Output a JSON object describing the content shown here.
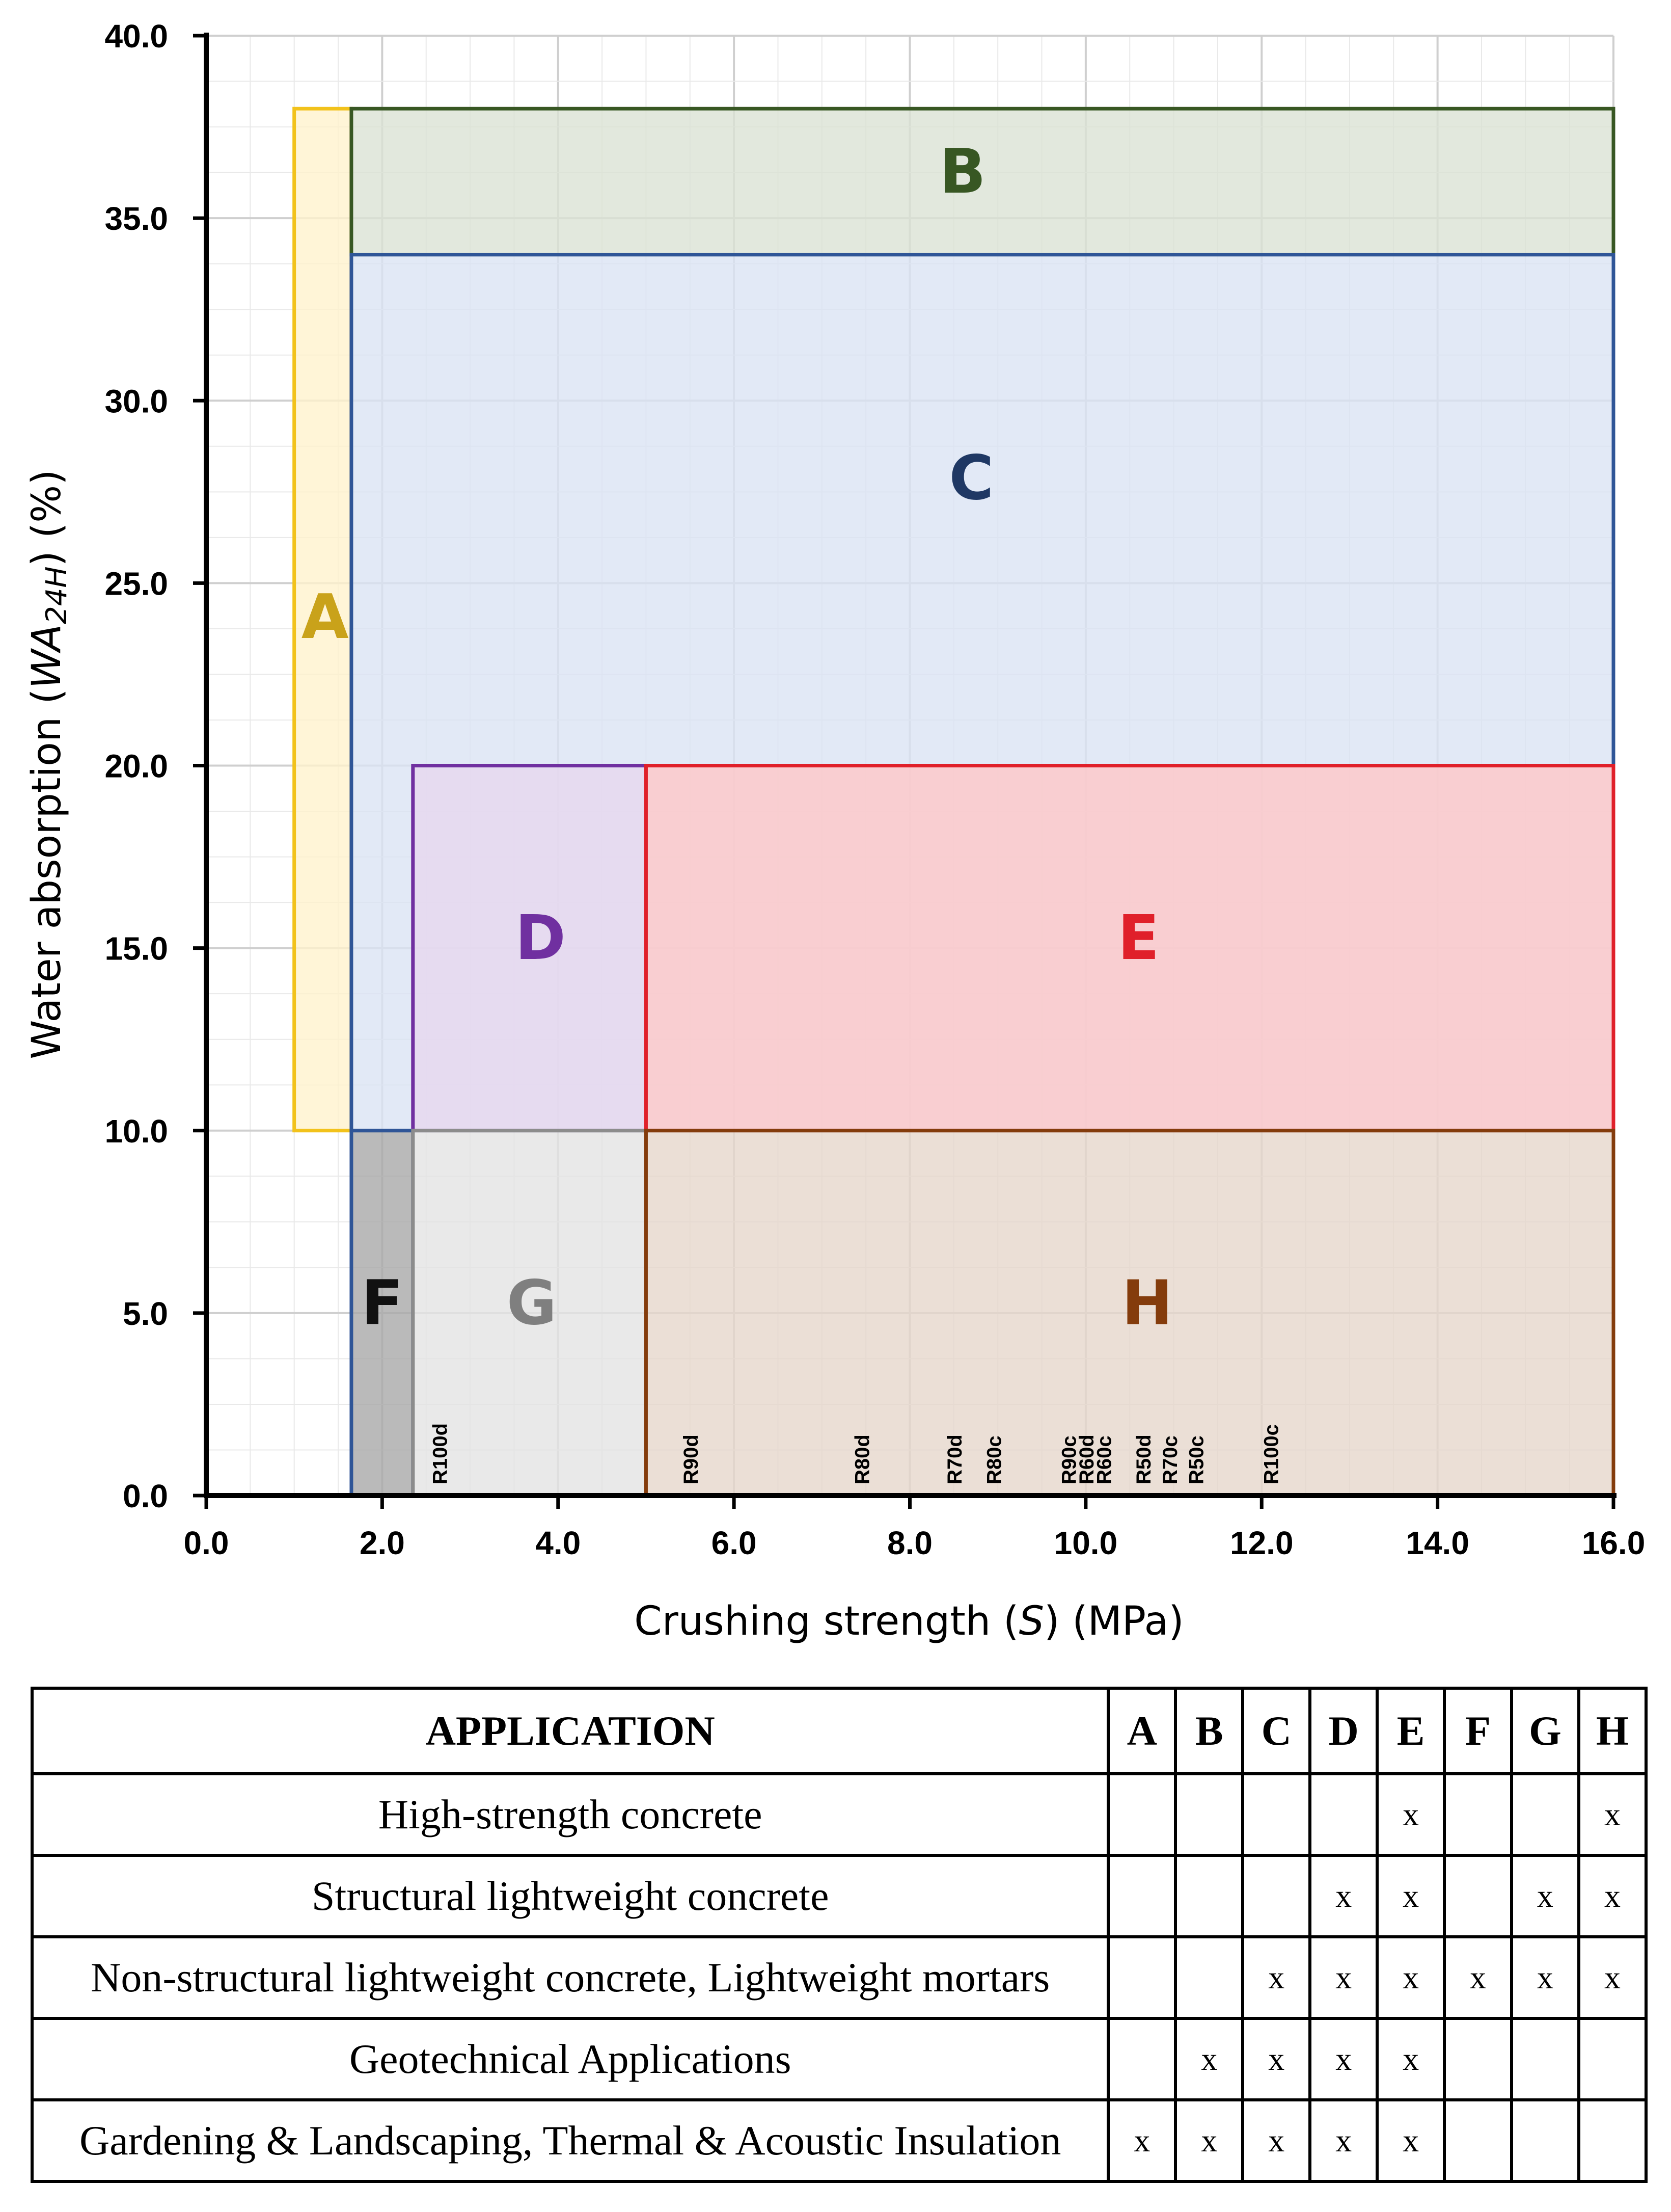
{
  "chart_data": {
    "type": "region",
    "xlabel": "Crushing strength (S) (MPa)",
    "xlabel_parts": [
      "Crushing strength (",
      "S",
      ") (MPa)"
    ],
    "ylabel": "Water absorption (WA24H) (%)",
    "ylabel_parts": [
      "Water absorption (",
      "WA",
      "24H",
      ") (%)"
    ],
    "xlim": [
      0,
      16
    ],
    "ylim": [
      0,
      40
    ],
    "x_ticks": [
      "0.0",
      "2.0",
      "4.0",
      "6.0",
      "8.0",
      "10.0",
      "12.0",
      "14.0",
      "16.0"
    ],
    "y_ticks": [
      "0.0",
      "5.0",
      "10.0",
      "15.0",
      "20.0",
      "25.0",
      "30.0",
      "35.0",
      "40.0"
    ],
    "grid": true,
    "zones": [
      {
        "label": "A",
        "x": [
          1.0,
          1.65
        ],
        "y": [
          10,
          38
        ],
        "fill": "#fff2cc",
        "stroke": "#f2c21b",
        "text": "#c9a21a",
        "label_at": [
          1.35,
          23.5
        ],
        "bold": false
      },
      {
        "label": "B",
        "x": [
          1.65,
          16
        ],
        "y": [
          34,
          38
        ],
        "fill": "#dae1d4",
        "stroke": "#385723",
        "text": "#385723",
        "label_at": [
          8.6,
          35.7
        ],
        "bold": true
      },
      {
        "label": "C",
        "x": [
          1.65,
          16
        ],
        "y": [
          10,
          34
        ],
        "fill": "#dae3f3",
        "stroke": "#2f5597",
        "text": "#1f3864",
        "label_at": [
          8.7,
          27.3
        ],
        "bold": true
      },
      {
        "label": "D",
        "x": [
          2.35,
          5.0
        ],
        "y": [
          10,
          20
        ],
        "fill": "#e7d7ee",
        "stroke": "#7030a0",
        "text": "#7030a0",
        "label_at": [
          3.8,
          14.7
        ],
        "bold": true
      },
      {
        "label": "E",
        "x": [
          5.0,
          16
        ],
        "y": [
          10,
          20
        ],
        "fill": "#ffc7c7",
        "stroke": "#e0202a",
        "text": "#e0202a",
        "label_at": [
          10.6,
          14.7
        ],
        "bold": true
      },
      {
        "label": "F",
        "x": [
          1.65,
          2.35
        ],
        "y": [
          0,
          10
        ],
        "fill": "#a6a6a6",
        "stroke": "#2f5597",
        "text": "#111111",
        "label_at": [
          2.0,
          4.7
        ],
        "bold": true
      },
      {
        "label": "G",
        "x": [
          2.35,
          5.0
        ],
        "y": [
          0,
          10
        ],
        "fill": "#e3e3e3",
        "stroke": "#8c8c8c",
        "text": "#7f7f7f",
        "label_at": [
          3.7,
          4.7
        ],
        "bold": true
      },
      {
        "label": "H",
        "x": [
          5.0,
          16
        ],
        "y": [
          0,
          10
        ],
        "fill": "#e6d6cb",
        "stroke": "#843c0c",
        "text": "#843c0c",
        "label_at": [
          10.7,
          4.7
        ],
        "bold": true
      }
    ],
    "samples": [
      {
        "label": "R100d",
        "x": 2.65
      },
      {
        "label": "R90d",
        "x": 5.5
      },
      {
        "label": "R80d",
        "x": 7.45
      },
      {
        "label": "R70d",
        "x": 8.5
      },
      {
        "label": "R80c",
        "x": 8.95
      },
      {
        "label": "R90c",
        "x": 9.8
      },
      {
        "label": "R60d",
        "x": 10.0
      },
      {
        "label": "R60c",
        "x": 10.2
      },
      {
        "label": "R50d",
        "x": 10.65
      },
      {
        "label": "R70c",
        "x": 10.95
      },
      {
        "label": "R50c",
        "x": 11.25
      },
      {
        "label": "R100c",
        "x": 12.1
      }
    ]
  },
  "table": {
    "header": "APPLICATION",
    "zones": [
      "A",
      "B",
      "C",
      "D",
      "E",
      "F",
      "G",
      "H"
    ],
    "mark": "x",
    "rows": [
      {
        "application": "High-strength concrete",
        "marks": [
          "",
          "",
          "",
          "",
          "x",
          "",
          "",
          "x"
        ]
      },
      {
        "application": "Structural lightweight concrete",
        "marks": [
          "",
          "",
          "",
          "x",
          "x",
          "",
          "x",
          "x"
        ]
      },
      {
        "application": "Non-structural lightweight concrete, Lightweight mortars",
        "marks": [
          "",
          "",
          "x",
          "x",
          "x",
          "x",
          "x",
          "x"
        ]
      },
      {
        "application": "Geotechnical Applications",
        "marks": [
          "",
          "x",
          "x",
          "x",
          "x",
          "",
          "",
          ""
        ]
      },
      {
        "application": "Gardening & Landscaping, Thermal & Acoustic Insulation",
        "marks": [
          "x",
          "x",
          "x",
          "x",
          "x",
          "",
          "",
          ""
        ]
      }
    ]
  }
}
